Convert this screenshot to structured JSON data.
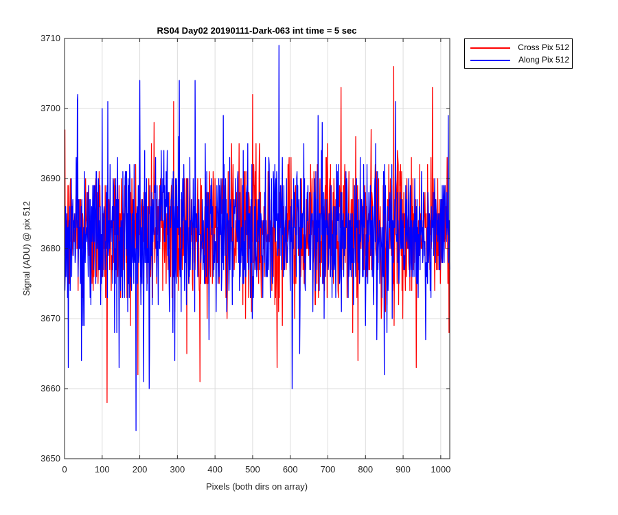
{
  "chart_data": {
    "type": "line",
    "title": "RS04 Day02 20190111-Dark-063 int time = 5 sec",
    "xlabel": "Pixels (both dirs on array)",
    "ylabel": "Signal (ADU) @ pix 512",
    "xlim": [
      0,
      1024
    ],
    "ylim": [
      3650,
      3710
    ],
    "xticks": [
      0,
      100,
      200,
      300,
      400,
      500,
      600,
      700,
      800,
      900,
      1000
    ],
    "yticks": [
      3650,
      3660,
      3670,
      3680,
      3690,
      3700,
      3710
    ],
    "grid": true,
    "legend_position": "outside-top-right",
    "series": [
      {
        "name": "Cross Pix 512",
        "color": "#ff0000",
        "mean": 3682.5,
        "std": 5.2,
        "x_range": [
          1,
          1024
        ],
        "min": {
          "x": 113,
          "y": 3658
        },
        "max": {
          "x": 875,
          "y": 3706
        },
        "notable_peaks": [
          {
            "x": 238,
            "y": 3698
          },
          {
            "x": 290,
            "y": 3701
          },
          {
            "x": 500,
            "y": 3702
          },
          {
            "x": 735,
            "y": 3703
          },
          {
            "x": 875,
            "y": 3706
          },
          {
            "x": 978,
            "y": 3703
          }
        ],
        "notable_dips": [
          {
            "x": 113,
            "y": 3658
          },
          {
            "x": 325,
            "y": 3665
          },
          {
            "x": 565,
            "y": 3663
          },
          {
            "x": 780,
            "y": 3664
          },
          {
            "x": 935,
            "y": 3663
          }
        ]
      },
      {
        "name": "Along Pix 512",
        "color": "#0000ff",
        "mean": 3682.0,
        "std": 5.5,
        "x_range": [
          1,
          1024
        ],
        "min": {
          "x": 190,
          "y": 3654
        },
        "max": {
          "x": 570,
          "y": 3709
        },
        "notable_peaks": [
          {
            "x": 35,
            "y": 3702
          },
          {
            "x": 100,
            "y": 3700
          },
          {
            "x": 115,
            "y": 3701
          },
          {
            "x": 200,
            "y": 3704
          },
          {
            "x": 210,
            "y": 3706
          },
          {
            "x": 305,
            "y": 3704
          },
          {
            "x": 570,
            "y": 3709
          },
          {
            "x": 880,
            "y": 3701
          },
          {
            "x": 1020,
            "y": 3699
          }
        ],
        "notable_dips": [
          {
            "x": 10,
            "y": 3663
          },
          {
            "x": 45,
            "y": 3664
          },
          {
            "x": 145,
            "y": 3663
          },
          {
            "x": 190,
            "y": 3654
          },
          {
            "x": 210,
            "y": 3661
          },
          {
            "x": 225,
            "y": 3660
          },
          {
            "x": 605,
            "y": 3660
          },
          {
            "x": 625,
            "y": 3665
          },
          {
            "x": 850,
            "y": 3662
          }
        ]
      }
    ]
  }
}
